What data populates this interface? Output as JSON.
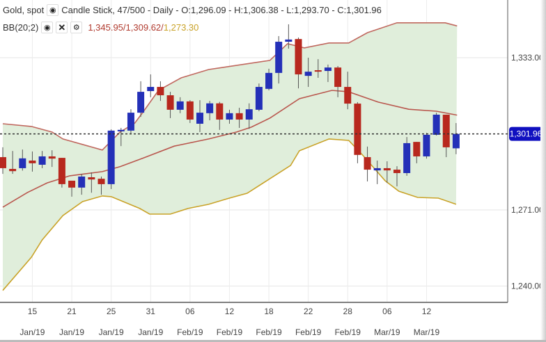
{
  "header": {
    "symbol": "Gold, spot",
    "info": "Candle Stick, 47/500 - Daily - O:1,296.09 - H:1,306.38 - L:1,293.70 - C:1,301.96",
    "indicator": "BB(20;2)",
    "bb_upper": "1,345.95",
    "bb_middle": "1,309.62",
    "bb_lower": "1,273.30",
    "sep": "/",
    "icons": [
      "eye-icon",
      "close-icon",
      "gear-icon"
    ]
  },
  "colors": {
    "up": "#2430b8",
    "down": "#b8281e",
    "band_fill": "#e0eedb",
    "upper": "#c0675e",
    "middle": "#b9564d",
    "lower": "#c9a227",
    "last_price": "#1010c0"
  },
  "chart_data": {
    "type": "candlestick",
    "title": "Gold, spot",
    "ylim": [
      1232,
      1357
    ],
    "yticks": [
      "1,333.00",
      "1,271.00",
      "1,240.00"
    ],
    "ytick_values": [
      1333,
      1271,
      1240
    ],
    "last_price_label": "1,301.96",
    "last_price": 1301.96,
    "xticks": [
      {
        "index": 3,
        "day": "15",
        "month": "Jan/19"
      },
      {
        "index": 7,
        "day": "21",
        "month": "Jan/19"
      },
      {
        "index": 11,
        "day": "25",
        "month": "Jan/19"
      },
      {
        "index": 15,
        "day": "31",
        "month": "Jan/19"
      },
      {
        "index": 19,
        "day": "06",
        "month": "Feb/19"
      },
      {
        "index": 23,
        "day": "12",
        "month": "Feb/19"
      },
      {
        "index": 27,
        "day": "18",
        "month": "Feb/19"
      },
      {
        "index": 31,
        "day": "22",
        "month": "Feb/19"
      },
      {
        "index": 35,
        "day": "28",
        "month": "Feb/19"
      },
      {
        "index": 39,
        "day": "06",
        "month": "Mar/19"
      },
      {
        "index": 43,
        "day": "12",
        "month": "Mar/19"
      }
    ],
    "ohlc": [
      [
        1292.5,
        1296.5,
        1285.7,
        1288.0
      ],
      [
        1287.7,
        1295.0,
        1285.7,
        1286.8
      ],
      [
        1288.0,
        1295.6,
        1287.0,
        1292.0
      ],
      [
        1291.1,
        1294.8,
        1286.6,
        1290.0
      ],
      [
        1289.4,
        1295.0,
        1288.0,
        1292.8
      ],
      [
        1292.8,
        1295.3,
        1288.5,
        1291.9
      ],
      [
        1292.2,
        1292.2,
        1280.1,
        1281.5
      ],
      [
        1282.9,
        1282.9,
        1276.4,
        1280.1
      ],
      [
        1280.1,
        1285.7,
        1277.2,
        1284.6
      ],
      [
        1284.3,
        1286.3,
        1278.0,
        1283.4
      ],
      [
        1283.7,
        1284.6,
        1277.2,
        1281.5
      ],
      [
        1281.5,
        1303.8,
        1279.5,
        1303.3
      ],
      [
        1303.0,
        1304.4,
        1297.0,
        1303.6
      ],
      [
        1303.3,
        1312.0,
        1302.1,
        1310.6
      ],
      [
        1310.6,
        1323.4,
        1308.9,
        1319.1
      ],
      [
        1319.4,
        1326.2,
        1316.9,
        1321.1
      ],
      [
        1321.1,
        1323.4,
        1315.4,
        1317.7
      ],
      [
        1317.7,
        1319.1,
        1308.4,
        1311.8
      ],
      [
        1311.8,
        1316.9,
        1310.4,
        1315.2
      ],
      [
        1315.2,
        1315.7,
        1306.4,
        1307.8
      ],
      [
        1306.1,
        1315.7,
        1302.7,
        1310.6
      ],
      [
        1310.4,
        1315.4,
        1307.5,
        1314.4
      ],
      [
        1314.4,
        1315.0,
        1303.6,
        1307.8
      ],
      [
        1307.8,
        1311.8,
        1306.1,
        1310.4
      ],
      [
        1310.4,
        1312.6,
        1304.4,
        1307.8
      ],
      [
        1307.8,
        1314.4,
        1304.0,
        1312.0
      ],
      [
        1311.8,
        1322.5,
        1311.2,
        1321.1
      ],
      [
        1320.3,
        1328.5,
        1319.7,
        1326.8
      ],
      [
        1326.8,
        1341.8,
        1322.5,
        1339.5
      ],
      [
        1339.5,
        1346.6,
        1336.7,
        1340.4
      ],
      [
        1340.6,
        1341.2,
        1320.5,
        1326.2
      ],
      [
        1325.6,
        1333.0,
        1321.1,
        1327.3
      ],
      [
        1327.9,
        1332.4,
        1324.8,
        1327.3
      ],
      [
        1327.6,
        1330.2,
        1323.1,
        1329.0
      ],
      [
        1329.0,
        1329.6,
        1316.9,
        1321.1
      ],
      [
        1321.1,
        1327.3,
        1312.0,
        1314.3
      ],
      [
        1314.3,
        1314.9,
        1290.0,
        1293.4
      ],
      [
        1292.5,
        1296.8,
        1282.6,
        1287.4
      ],
      [
        1287.1,
        1291.1,
        1281.5,
        1288.0
      ],
      [
        1288.0,
        1290.8,
        1282.0,
        1287.1
      ],
      [
        1287.4,
        1288.8,
        1280.6,
        1286.0
      ],
      [
        1286.0,
        1300.7,
        1284.9,
        1298.2
      ],
      [
        1298.7,
        1298.7,
        1290.0,
        1292.8
      ],
      [
        1292.8,
        1302.4,
        1291.9,
        1301.6
      ],
      [
        1301.6,
        1310.6,
        1301.3,
        1309.8
      ],
      [
        1309.8,
        1309.8,
        1292.5,
        1296.5
      ],
      [
        1296.09,
        1306.38,
        1293.7,
        1301.96
      ]
    ],
    "bb_upper": [
      [
        0,
        1306.1
      ],
      [
        2.9,
        1305.0
      ],
      [
        5,
        1302.7
      ],
      [
        6.1,
        1299.9
      ],
      [
        10.1,
        1295.4
      ],
      [
        11.9,
        1302.7
      ],
      [
        13.4,
        1306.4
      ],
      [
        14.3,
        1311.2
      ],
      [
        15.8,
        1319.7
      ],
      [
        18.1,
        1324.8
      ],
      [
        20.9,
        1328.2
      ],
      [
        22.3,
        1329.0
      ],
      [
        27.1,
        1331.9
      ],
      [
        28.9,
        1338.7
      ],
      [
        30.6,
        1337.0
      ],
      [
        33.1,
        1339.0
      ],
      [
        35.1,
        1339.0
      ],
      [
        37,
        1343.2
      ],
      [
        40,
        1347.2
      ],
      [
        44.9,
        1347.2
      ],
      [
        46.1,
        1345.95
      ]
    ],
    "bb_middle": [
      [
        0,
        1272.1
      ],
      [
        2.5,
        1278.1
      ],
      [
        4.5,
        1282.0
      ],
      [
        6.8,
        1284.9
      ],
      [
        10.1,
        1286.6
      ],
      [
        11.9,
        1288.6
      ],
      [
        14.3,
        1292.2
      ],
      [
        17.4,
        1297.0
      ],
      [
        20.9,
        1299.9
      ],
      [
        23.7,
        1302.7
      ],
      [
        25.2,
        1304.7
      ],
      [
        27.1,
        1308.4
      ],
      [
        30.1,
        1316.3
      ],
      [
        33.4,
        1319.7
      ],
      [
        35.1,
        1319.1
      ],
      [
        38.1,
        1314.9
      ],
      [
        41.2,
        1312.0
      ],
      [
        44,
        1311.2
      ],
      [
        46.1,
        1309.62
      ]
    ],
    "bb_lower": [
      [
        0,
        1238.2
      ],
      [
        2.9,
        1251.7
      ],
      [
        4,
        1258.8
      ],
      [
        6.1,
        1268.7
      ],
      [
        8.1,
        1274.4
      ],
      [
        10.1,
        1276.7
      ],
      [
        11,
        1276.4
      ],
      [
        13.9,
        1271.6
      ],
      [
        14.9,
        1269.3
      ],
      [
        17,
        1269.3
      ],
      [
        18.8,
        1271.6
      ],
      [
        20.9,
        1273.3
      ],
      [
        23,
        1275.8
      ],
      [
        24.8,
        1277.8
      ],
      [
        27.1,
        1283.7
      ],
      [
        29.2,
        1289.1
      ],
      [
        30.1,
        1295.1
      ],
      [
        33.1,
        1299.9
      ],
      [
        35.1,
        1299.3
      ],
      [
        36.5,
        1293.4
      ],
      [
        38.8,
        1282.9
      ],
      [
        40.2,
        1278.6
      ],
      [
        42.1,
        1276.1
      ],
      [
        44.2,
        1275.8
      ],
      [
        46,
        1273.3
      ]
    ]
  }
}
